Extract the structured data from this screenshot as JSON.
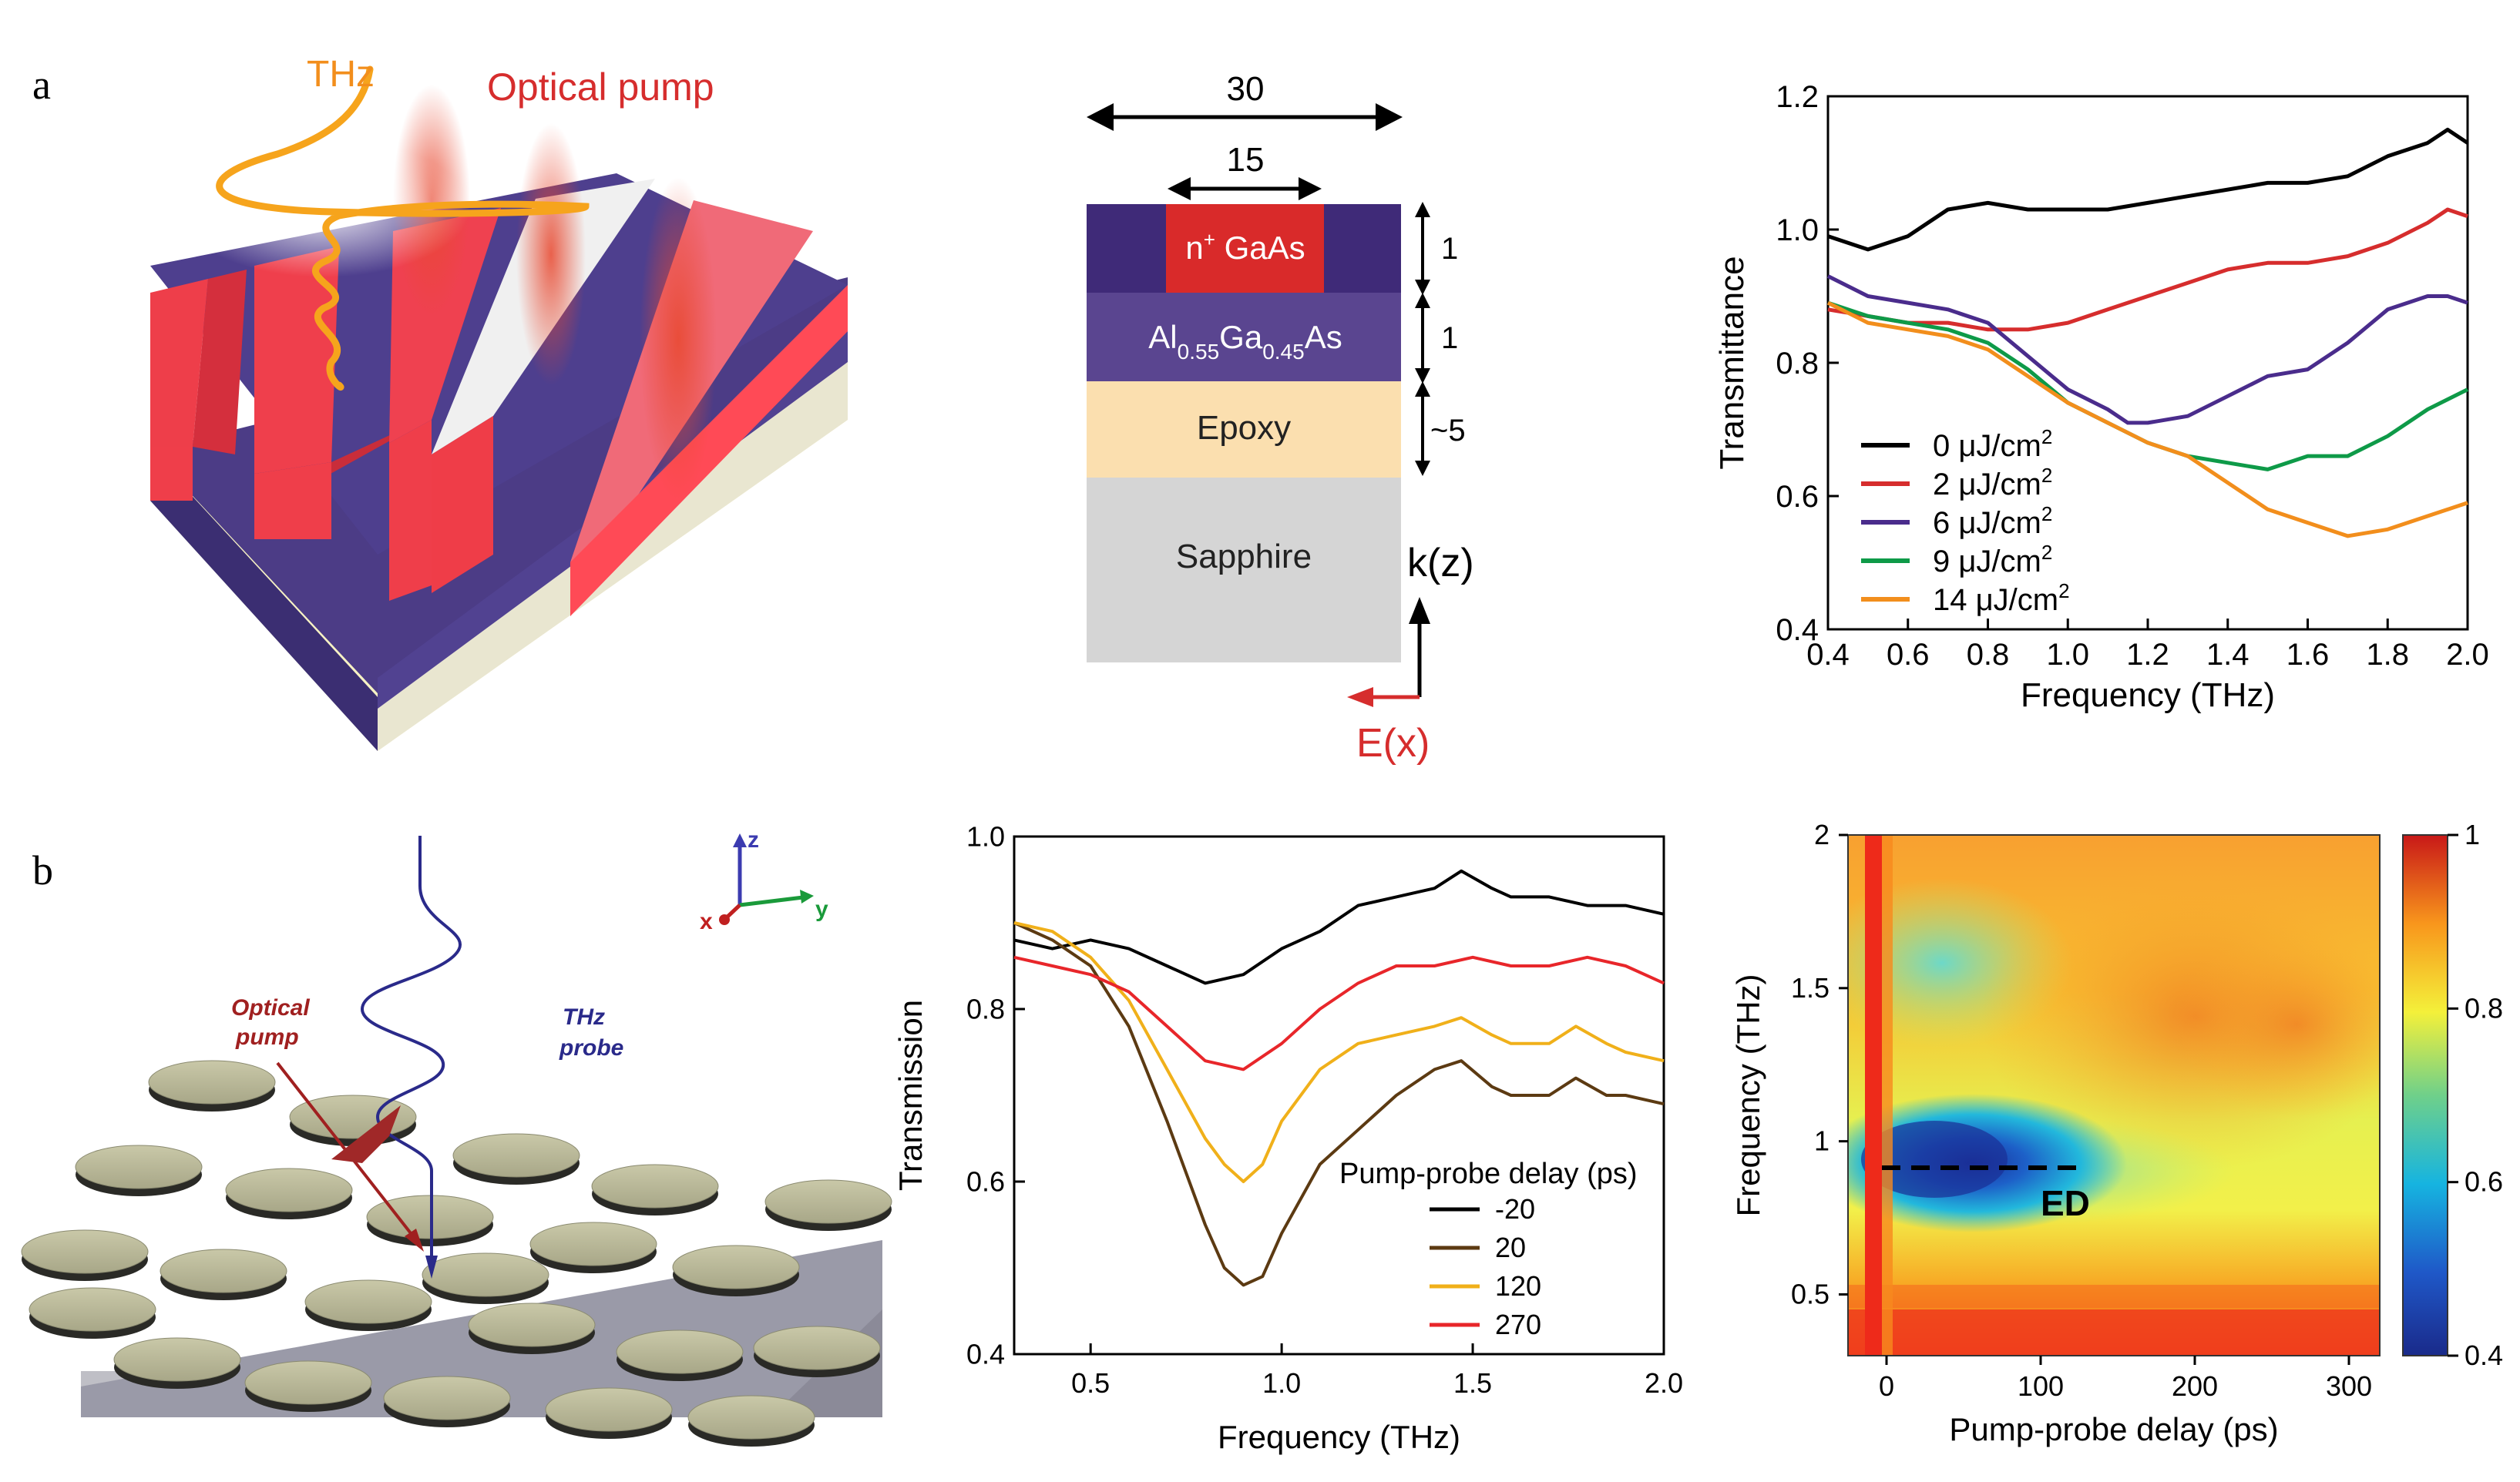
{
  "panels": {
    "a": {
      "label": "a",
      "illustration": {
        "thz_label": "THz",
        "pump_label": "Optical pump"
      },
      "layer_stack": {
        "width_total": "30",
        "width_stripe": "15",
        "layers": [
          {
            "name": "n",
            "sup": "+",
            "rest": " GaAs",
            "thickness": "1"
          },
          {
            "name": "Al0.55Ga0.45As",
            "thickness": "1"
          },
          {
            "name": "Epoxy",
            "thickness": "~5"
          },
          {
            "name": "Sapphire"
          }
        ],
        "algaas": {
          "al": "Al",
          "al_sub": "0.55",
          "ga": "Ga",
          "ga_sub": "0.45",
          "as": "As"
        },
        "k_label": "k(z)",
        "e_label": "E(x)"
      },
      "colors": {
        "black": "#000000",
        "red": "#d62d2d",
        "purple": "#4a2c8c",
        "green": "#0e9a48",
        "orange": "#f28e1c"
      }
    },
    "b": {
      "label": "b",
      "illustration": {
        "pump_label_1": "Optical",
        "pump_label_2": "pump",
        "probe_label_1": "THz",
        "probe_label_2": "probe",
        "axis_x": "x",
        "axis_y": "y",
        "axis_z": "z"
      },
      "heatmap": {
        "annotation": "ED"
      }
    }
  },
  "chart_data": [
    {
      "type": "line",
      "panel": "a-right",
      "xlabel": "Frequency (THz)",
      "ylabel": "Transmittance",
      "xlim": [
        0.4,
        2.0
      ],
      "ylim": [
        0.4,
        1.2
      ],
      "xticks": [
        0.4,
        0.6,
        0.8,
        1.0,
        1.2,
        1.4,
        1.6,
        1.8,
        2.0
      ],
      "yticks": [
        0.4,
        0.6,
        0.8,
        1.0,
        1.2
      ],
      "xtick_labels": [
        "0.4",
        "0.6",
        "0.8",
        "1.0",
        "1.2",
        "1.4",
        "1.6",
        "1.8",
        "2.0"
      ],
      "ytick_labels": [
        "0.4",
        "0.6",
        "0.8",
        "1.0",
        "1.2"
      ],
      "legend_unit": "μJ/cm",
      "legend_unit_sup": "2",
      "series": [
        {
          "name": "0",
          "color": "#000000",
          "x": [
            0.4,
            0.45,
            0.5,
            0.6,
            0.7,
            0.8,
            0.9,
            1.0,
            1.1,
            1.2,
            1.3,
            1.4,
            1.5,
            1.6,
            1.7,
            1.8,
            1.9,
            1.95,
            2.0
          ],
          "y": [
            0.99,
            0.98,
            0.97,
            0.99,
            1.03,
            1.04,
            1.03,
            1.03,
            1.03,
            1.04,
            1.05,
            1.06,
            1.07,
            1.07,
            1.08,
            1.11,
            1.13,
            1.15,
            1.13
          ]
        },
        {
          "name": "2",
          "color": "#d62d2d",
          "x": [
            0.4,
            0.5,
            0.6,
            0.7,
            0.8,
            0.9,
            1.0,
            1.1,
            1.2,
            1.3,
            1.4,
            1.5,
            1.6,
            1.7,
            1.8,
            1.9,
            1.95,
            2.0
          ],
          "y": [
            0.88,
            0.87,
            0.86,
            0.86,
            0.85,
            0.85,
            0.86,
            0.88,
            0.9,
            0.92,
            0.94,
            0.95,
            0.95,
            0.96,
            0.98,
            1.01,
            1.03,
            1.02
          ]
        },
        {
          "name": "6",
          "color": "#4a2c8c",
          "x": [
            0.4,
            0.5,
            0.6,
            0.7,
            0.8,
            0.9,
            1.0,
            1.1,
            1.15,
            1.2,
            1.3,
            1.4,
            1.5,
            1.6,
            1.7,
            1.8,
            1.9,
            1.95,
            2.0
          ],
          "y": [
            0.93,
            0.9,
            0.89,
            0.88,
            0.86,
            0.81,
            0.76,
            0.73,
            0.71,
            0.71,
            0.72,
            0.75,
            0.78,
            0.79,
            0.83,
            0.88,
            0.9,
            0.9,
            0.89
          ]
        },
        {
          "name": "9",
          "color": "#0e9a48",
          "x": [
            0.4,
            0.5,
            0.6,
            0.7,
            0.8,
            0.9,
            1.0,
            1.1,
            1.2,
            1.3,
            1.4,
            1.5,
            1.6,
            1.7,
            1.8,
            1.9,
            2.0
          ],
          "y": [
            0.89,
            0.87,
            0.86,
            0.85,
            0.83,
            0.79,
            0.74,
            0.71,
            0.68,
            0.66,
            0.65,
            0.64,
            0.66,
            0.66,
            0.69,
            0.73,
            0.76
          ]
        },
        {
          "name": "14",
          "color": "#f28e1c",
          "x": [
            0.4,
            0.5,
            0.6,
            0.7,
            0.8,
            0.9,
            1.0,
            1.1,
            1.2,
            1.3,
            1.4,
            1.5,
            1.6,
            1.7,
            1.8,
            1.9,
            2.0
          ],
          "y": [
            0.89,
            0.86,
            0.85,
            0.84,
            0.82,
            0.78,
            0.74,
            0.71,
            0.68,
            0.66,
            0.62,
            0.58,
            0.56,
            0.54,
            0.55,
            0.57,
            0.59
          ]
        }
      ]
    },
    {
      "type": "line",
      "panel": "b-middle",
      "xlabel": "Frequency (THz)",
      "ylabel": "Transmission",
      "xlim": [
        0.3,
        2.0
      ],
      "ylim": [
        0.4,
        1.0
      ],
      "xticks": [
        0.5,
        1.0,
        1.5,
        2.0
      ],
      "yticks": [
        0.4,
        0.6,
        0.8,
        1.0
      ],
      "xtick_labels": [
        "0.5",
        "1.0",
        "1.5",
        "2.0"
      ],
      "ytick_labels": [
        "0.4",
        "0.6",
        "0.8",
        "1.0"
      ],
      "legend_title": "Pump-probe delay (ps)",
      "series": [
        {
          "name": "-20",
          "color": "#000000",
          "x": [
            0.3,
            0.4,
            0.5,
            0.6,
            0.7,
            0.8,
            0.9,
            1.0,
            1.1,
            1.2,
            1.3,
            1.4,
            1.47,
            1.55,
            1.6,
            1.7,
            1.8,
            1.9,
            2.0
          ],
          "y": [
            0.88,
            0.87,
            0.88,
            0.87,
            0.85,
            0.83,
            0.84,
            0.87,
            0.89,
            0.92,
            0.93,
            0.94,
            0.96,
            0.94,
            0.93,
            0.93,
            0.92,
            0.92,
            0.91
          ]
        },
        {
          "name": "20",
          "color": "#5c3a12",
          "x": [
            0.3,
            0.4,
            0.5,
            0.6,
            0.7,
            0.8,
            0.85,
            0.9,
            0.95,
            1.0,
            1.1,
            1.2,
            1.3,
            1.4,
            1.47,
            1.55,
            1.6,
            1.7,
            1.77,
            1.85,
            1.9,
            2.0
          ],
          "y": [
            0.9,
            0.88,
            0.85,
            0.78,
            0.67,
            0.55,
            0.5,
            0.48,
            0.49,
            0.54,
            0.62,
            0.66,
            0.7,
            0.73,
            0.74,
            0.71,
            0.7,
            0.7,
            0.72,
            0.7,
            0.7,
            0.69
          ]
        },
        {
          "name": "120",
          "color": "#f0b01a",
          "x": [
            0.3,
            0.4,
            0.5,
            0.6,
            0.7,
            0.8,
            0.85,
            0.9,
            0.95,
            1.0,
            1.1,
            1.2,
            1.3,
            1.4,
            1.47,
            1.55,
            1.6,
            1.7,
            1.77,
            1.85,
            1.9,
            2.0
          ],
          "y": [
            0.9,
            0.89,
            0.86,
            0.81,
            0.73,
            0.65,
            0.62,
            0.6,
            0.62,
            0.67,
            0.73,
            0.76,
            0.77,
            0.78,
            0.79,
            0.77,
            0.76,
            0.76,
            0.78,
            0.76,
            0.75,
            0.74
          ]
        },
        {
          "name": "270",
          "color": "#e8262a",
          "x": [
            0.3,
            0.4,
            0.5,
            0.6,
            0.7,
            0.8,
            0.9,
            1.0,
            1.1,
            1.2,
            1.3,
            1.4,
            1.5,
            1.6,
            1.7,
            1.8,
            1.9,
            2.0
          ],
          "y": [
            0.86,
            0.85,
            0.84,
            0.82,
            0.78,
            0.74,
            0.73,
            0.76,
            0.8,
            0.83,
            0.85,
            0.85,
            0.86,
            0.85,
            0.85,
            0.86,
            0.85,
            0.83
          ]
        }
      ]
    },
    {
      "type": "heatmap",
      "panel": "b-right",
      "xlabel": "Pump-probe delay (ps)",
      "ylabel": "Frequency (THz)",
      "xlim": [
        -25,
        320
      ],
      "ylim": [
        0.3,
        2.0
      ],
      "xticks": [
        0,
        100,
        200,
        300
      ],
      "yticks": [
        0.5,
        1.0,
        1.5,
        2.0
      ],
      "xtick_labels": [
        "0",
        "100",
        "200",
        "300"
      ],
      "ytick_labels": [
        "0.5",
        "1",
        "1.5",
        "2"
      ],
      "colorbar": {
        "range": [
          0.4,
          1.0
        ],
        "ticks": [
          0.4,
          0.6,
          0.8,
          1.0
        ],
        "tick_labels": [
          "0.4",
          "0.6",
          "0.8",
          "1"
        ]
      },
      "annotation": {
        "text": "ED",
        "frequency": 0.91,
        "delay_start": 0,
        "delay_end": 130
      }
    }
  ]
}
